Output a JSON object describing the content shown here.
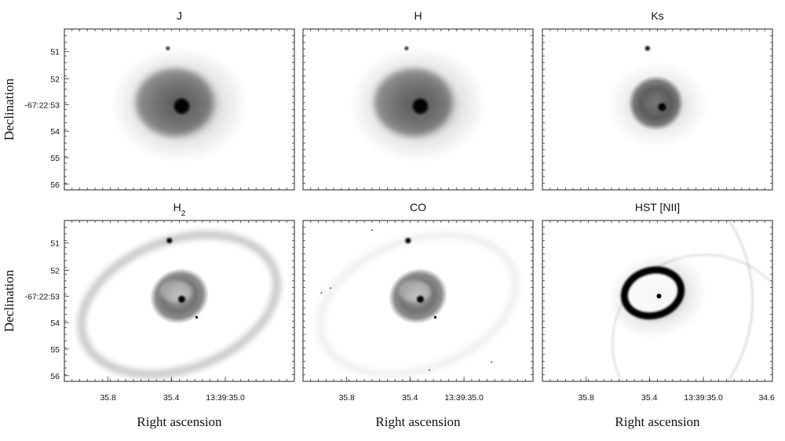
{
  "figure": {
    "panels": [
      {
        "id": "J",
        "title": "J",
        "sub": "",
        "style": "broadband",
        "row": 0,
        "col": 0
      },
      {
        "id": "H",
        "title": "H",
        "sub": "",
        "style": "broadband",
        "row": 0,
        "col": 1
      },
      {
        "id": "Ks",
        "title": "Ks",
        "sub": "",
        "style": "ks",
        "row": 0,
        "col": 2
      },
      {
        "id": "H2",
        "title": "H",
        "sub": "2",
        "style": "h2",
        "row": 1,
        "col": 0
      },
      {
        "id": "CO",
        "title": "CO",
        "sub": "",
        "style": "co",
        "row": 1,
        "col": 1
      },
      {
        "id": "NII",
        "title": "HST [NII]",
        "sub": "",
        "style": "nii",
        "row": 1,
        "col": 2
      }
    ],
    "y_axis": {
      "label": "Declination",
      "ticks": [
        "51",
        "52",
        "-67:22:53",
        "54",
        "55",
        "56"
      ]
    },
    "x_axis": {
      "label": "Right ascension",
      "ticks": [
        "35.8",
        "35.4",
        "13:39:35.0"
      ],
      "extra_tick_last_panel": "34.6"
    },
    "colormap": "inverted grayscale"
  }
}
